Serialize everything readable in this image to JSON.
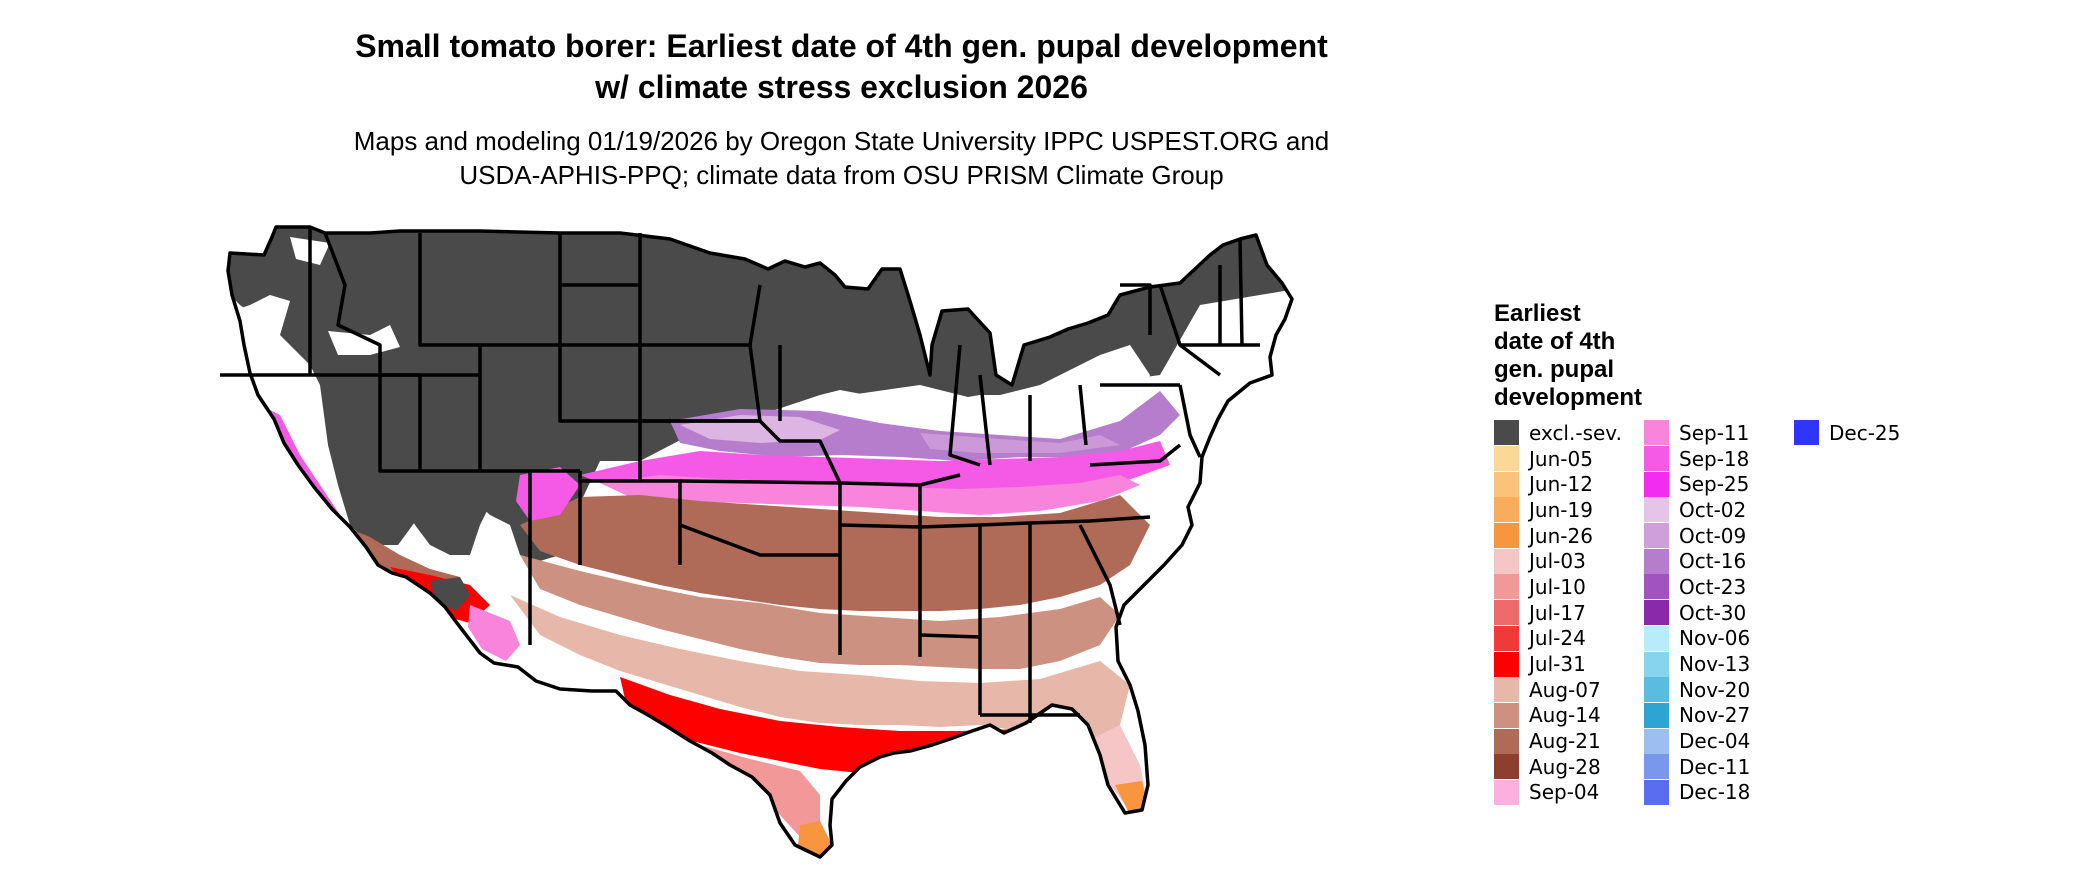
{
  "title": {
    "line1": "Small tomato borer: Earliest date of 4th gen. pupal development",
    "line2": "w/ climate stress exclusion 2026"
  },
  "subtitle": {
    "line1": "Maps and modeling 01/19/2026 by Oregon State University IPPC USPEST.ORG and",
    "line2": "USDA-APHIS-PPQ; climate data from OSU PRISM Climate Group"
  },
  "legend": {
    "title_lines": [
      "Earliest",
      "date of 4th",
      "gen. pupal",
      "development"
    ],
    "items": [
      {
        "label": "excl.-sev.",
        "color": "#4a4a4a"
      },
      {
        "label": "Jun-05",
        "color": "#fcd898"
      },
      {
        "label": "Jun-12",
        "color": "#fbc27a"
      },
      {
        "label": "Jun-19",
        "color": "#f9ac5c"
      },
      {
        "label": "Jun-26",
        "color": "#f7963e"
      },
      {
        "label": "Jul-03",
        "color": "#f6c5c5"
      },
      {
        "label": "Jul-10",
        "color": "#f29898"
      },
      {
        "label": "Jul-17",
        "color": "#ef6a6a"
      },
      {
        "label": "Jul-24",
        "color": "#f03a3a"
      },
      {
        "label": "Jul-31",
        "color": "#ff0000"
      },
      {
        "label": "Aug-07",
        "color": "#e7b8a9"
      },
      {
        "label": "Aug-14",
        "color": "#cc9180"
      },
      {
        "label": "Aug-21",
        "color": "#b06a58"
      },
      {
        "label": "Aug-28",
        "color": "#8e3e2e"
      },
      {
        "label": "Sep-04",
        "color": "#fbb0e0"
      },
      {
        "label": "Sep-11",
        "color": "#f884dc"
      },
      {
        "label": "Sep-18",
        "color": "#f55ae6"
      },
      {
        "label": "Sep-25",
        "color": "#f22cf0"
      },
      {
        "label": "Oct-02",
        "color": "#e6c3e8"
      },
      {
        "label": "Oct-09",
        "color": "#cf9fdb"
      },
      {
        "label": "Oct-16",
        "color": "#b77dcd"
      },
      {
        "label": "Oct-23",
        "color": "#a154bf"
      },
      {
        "label": "Oct-30",
        "color": "#8a2aaa"
      },
      {
        "label": "Nov-06",
        "color": "#b9ecfa"
      },
      {
        "label": "Nov-13",
        "color": "#86d4ee"
      },
      {
        "label": "Nov-20",
        "color": "#5abde0"
      },
      {
        "label": "Nov-27",
        "color": "#2ea4d3"
      },
      {
        "label": "Dec-04",
        "color": "#9cbff0"
      },
      {
        "label": "Dec-11",
        "color": "#7a97ee"
      },
      {
        "label": "Dec-18",
        "color": "#5a6cf0"
      },
      {
        "label": "Dec-25",
        "color": "#2f36fa"
      }
    ]
  },
  "map_colors": {
    "excluded": "#4a4a4a",
    "background": "#ffffff",
    "borders": "#000000"
  }
}
